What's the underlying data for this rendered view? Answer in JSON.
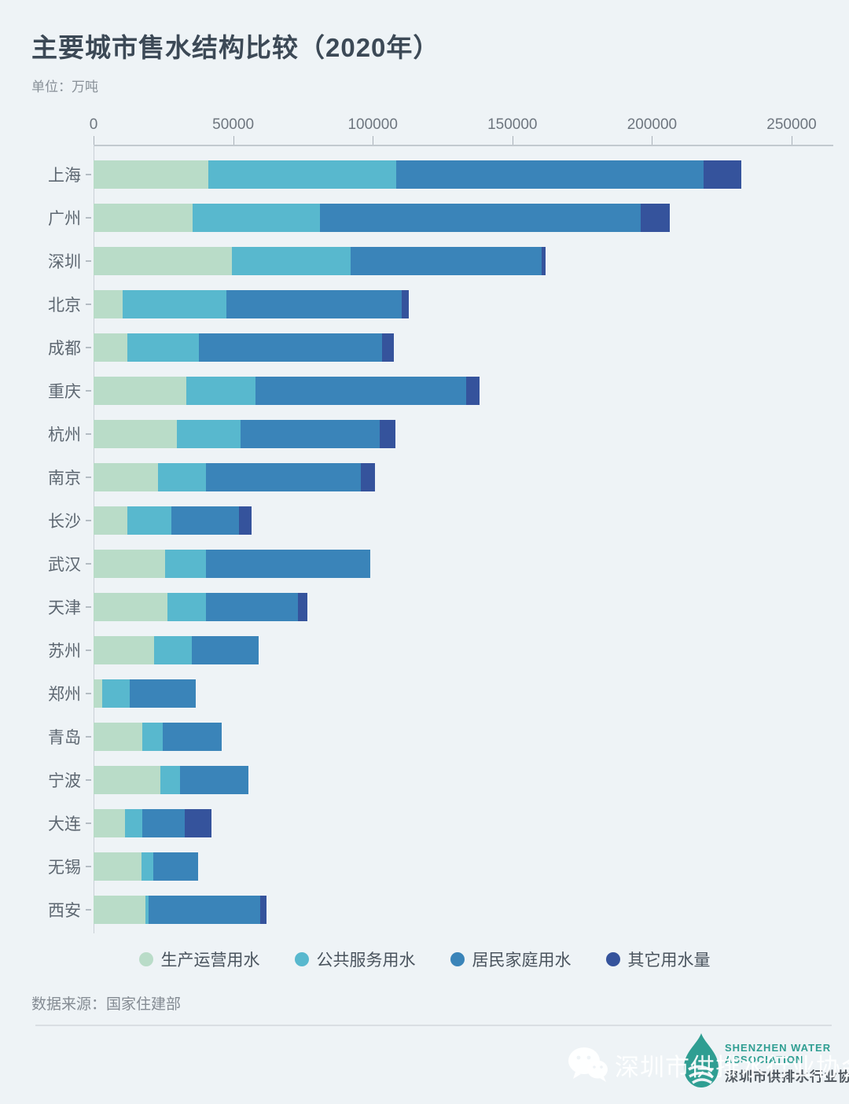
{
  "title": "主要城市售水结构比较（2020年）",
  "unit_label": "单位：万吨",
  "source": "数据来源：国家住建部",
  "watermark": {
    "text": "深圳市供排水行业协会"
  },
  "logo": {
    "en1": "SHENZHEN WATER",
    "en2": "ASSOCIATION",
    "cn": "深圳市供排水行业协会"
  },
  "colors": {
    "background": "#eef3f6",
    "title_text": "#3c4956",
    "axis_text": "#6e767f",
    "category_text": "#5d6771",
    "series_production": "#b9dcc8",
    "series_public": "#58b8ce",
    "series_residential": "#3a84b9",
    "series_other": "#35539c",
    "logo_teal": "#2f9e92",
    "divider": "#d9dee3"
  },
  "chart_data": {
    "type": "bar",
    "orientation": "horizontal",
    "stacked": true,
    "title": "主要城市售水结构比较（2020年）",
    "unit": "万吨",
    "xlabel": "",
    "ylabel": "",
    "xlim": [
      0,
      250000
    ],
    "x_ticks": [
      0,
      50000,
      100000,
      150000,
      200000,
      250000
    ],
    "grid": false,
    "legend_position": "bottom",
    "categories": [
      "上海",
      "广州",
      "深圳",
      "北京",
      "成都",
      "重庆",
      "杭州",
      "南京",
      "长沙",
      "武汉",
      "天津",
      "苏州",
      "郑州",
      "青岛",
      "宁波",
      "大连",
      "无锡",
      "西安"
    ],
    "series": [
      {
        "name": "生产运营用水",
        "key": "production",
        "color": "#b9dcc8",
        "values": [
          41000,
          35500,
          49500,
          10500,
          12000,
          33300,
          29800,
          23000,
          12000,
          25700,
          26600,
          21700,
          3000,
          17400,
          24000,
          11200,
          17200,
          18700
        ]
      },
      {
        "name": "公共服务用水",
        "key": "public",
        "color": "#58b8ce",
        "values": [
          67500,
          45500,
          42500,
          37000,
          25700,
          24700,
          22900,
          17200,
          16000,
          14500,
          13800,
          13400,
          10000,
          7400,
          7000,
          6200,
          4100,
          1100
        ]
      },
      {
        "name": "居民家庭用水",
        "key": "residential",
        "color": "#3a84b9",
        "values": [
          110000,
          115000,
          68500,
          63000,
          65500,
          75400,
          49800,
          55600,
          24200,
          58800,
          32800,
          24000,
          23500,
          21200,
          24400,
          15400,
          16200,
          39900
        ]
      },
      {
        "name": "其它用水量",
        "key": "other",
        "color": "#35539c",
        "values": [
          13500,
          10500,
          1500,
          2500,
          4300,
          4800,
          5500,
          4900,
          4400,
          0,
          3400,
          0,
          0,
          0,
          0,
          9300,
          0,
          2200
        ]
      }
    ],
    "totals": [
      232000,
      206500,
      162000,
      113000,
      107500,
      138200,
      108000,
      100700,
      56600,
      99000,
      76600,
      59100,
      36500,
      46000,
      55400,
      42100,
      37500,
      61900
    ]
  }
}
